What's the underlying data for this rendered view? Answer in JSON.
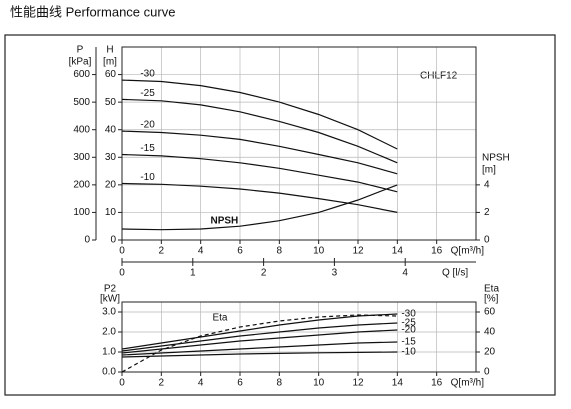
{
  "chart_data": [
    {
      "type": "line",
      "title": "性能曲线 Performance curve",
      "annotation": "CHLF12",
      "x": [
        0,
        2,
        4,
        6,
        8,
        10,
        12,
        14
      ],
      "xlim": [
        0,
        18
      ],
      "xticks": [
        0,
        2,
        4,
        6,
        8,
        10,
        12,
        14,
        16
      ],
      "xlabel": "Q[m³/h]",
      "x2lim": [
        0,
        5
      ],
      "x2ticks": [
        0,
        1,
        2,
        3,
        4
      ],
      "x2label": "Q [l/s]",
      "ylabel": [
        "H",
        "[m]"
      ],
      "ylim": [
        0,
        70
      ],
      "yticks": [
        0,
        10,
        20,
        30,
        40,
        50,
        60
      ],
      "p_axis": {
        "label": [
          "P",
          "[kPa]"
        ],
        "lim": [
          0,
          700
        ],
        "ticks": [
          0,
          100,
          200,
          300,
          400,
          500,
          600
        ]
      },
      "y2label": [
        "NPSH",
        "[m]"
      ],
      "y2lim": [
        0,
        14
      ],
      "y2ticks": [
        0,
        2,
        4
      ],
      "grid": true,
      "series": [
        {
          "name": "-30",
          "color": "#111111",
          "values": [
            58,
            57.5,
            56,
            53.5,
            50,
            45.5,
            40,
            33
          ]
        },
        {
          "name": "-25",
          "color": "#111111",
          "values": [
            51,
            50.5,
            49,
            46.5,
            43,
            39,
            34,
            28
          ]
        },
        {
          "name": "-20",
          "color": "#111111",
          "values": [
            39.5,
            39,
            38,
            36.5,
            34,
            31,
            28,
            24
          ]
        },
        {
          "name": "-15",
          "color": "#111111",
          "values": [
            31,
            30.5,
            29.5,
            28,
            26,
            23.5,
            21,
            17.5
          ]
        },
        {
          "name": "-10",
          "color": "#111111",
          "values": [
            20.5,
            20.2,
            19.5,
            18.5,
            17,
            15,
            12.8,
            10
          ]
        },
        {
          "name": "NPSH",
          "color": "#111111",
          "axis": "y2",
          "values": [
            0.8,
            0.75,
            0.8,
            1.0,
            1.4,
            2.0,
            2.9,
            4.0
          ]
        }
      ]
    },
    {
      "type": "line",
      "x": [
        0,
        2,
        4,
        6,
        8,
        10,
        12,
        14
      ],
      "xlim": [
        0,
        18
      ],
      "xticks": [
        0,
        2,
        4,
        6,
        8,
        10,
        12,
        14,
        16
      ],
      "xlabel": "Q[m³/h]",
      "ylabel": [
        "P2",
        "[kW]"
      ],
      "ylim": [
        0,
        3.5
      ],
      "yticks": [
        {
          "value": 0,
          "label": "0.0"
        },
        {
          "value": 1,
          "label": "1.0"
        },
        {
          "value": 2,
          "label": "2.0"
        },
        {
          "value": 3,
          "label": "3.0"
        }
      ],
      "y2label": [
        "Eta",
        "[%]"
      ],
      "y2lim": [
        0,
        70
      ],
      "y2ticks": [
        0,
        20,
        40,
        60
      ],
      "grid": true,
      "series": [
        {
          "name": "-30",
          "color": "#111111",
          "values": [
            1.15,
            1.45,
            1.75,
            2.05,
            2.35,
            2.6,
            2.8,
            2.9
          ]
        },
        {
          "name": "-25",
          "color": "#111111",
          "values": [
            1.05,
            1.3,
            1.55,
            1.8,
            2.0,
            2.2,
            2.35,
            2.45
          ]
        },
        {
          "name": "-20",
          "color": "#111111",
          "values": [
            0.95,
            1.15,
            1.35,
            1.55,
            1.7,
            1.85,
            2.0,
            2.1
          ]
        },
        {
          "name": "-15",
          "color": "#111111",
          "values": [
            0.85,
            0.95,
            1.05,
            1.15,
            1.25,
            1.35,
            1.45,
            1.5
          ]
        },
        {
          "name": "-10",
          "color": "#111111",
          "values": [
            0.75,
            0.8,
            0.85,
            0.9,
            0.93,
            0.96,
            0.98,
            1.0
          ]
        },
        {
          "name": "Eta",
          "color": "#111111",
          "axis": "y2",
          "style": "dashed",
          "values": [
            0,
            22,
            36,
            45,
            51,
            55,
            57,
            56
          ]
        }
      ]
    }
  ]
}
